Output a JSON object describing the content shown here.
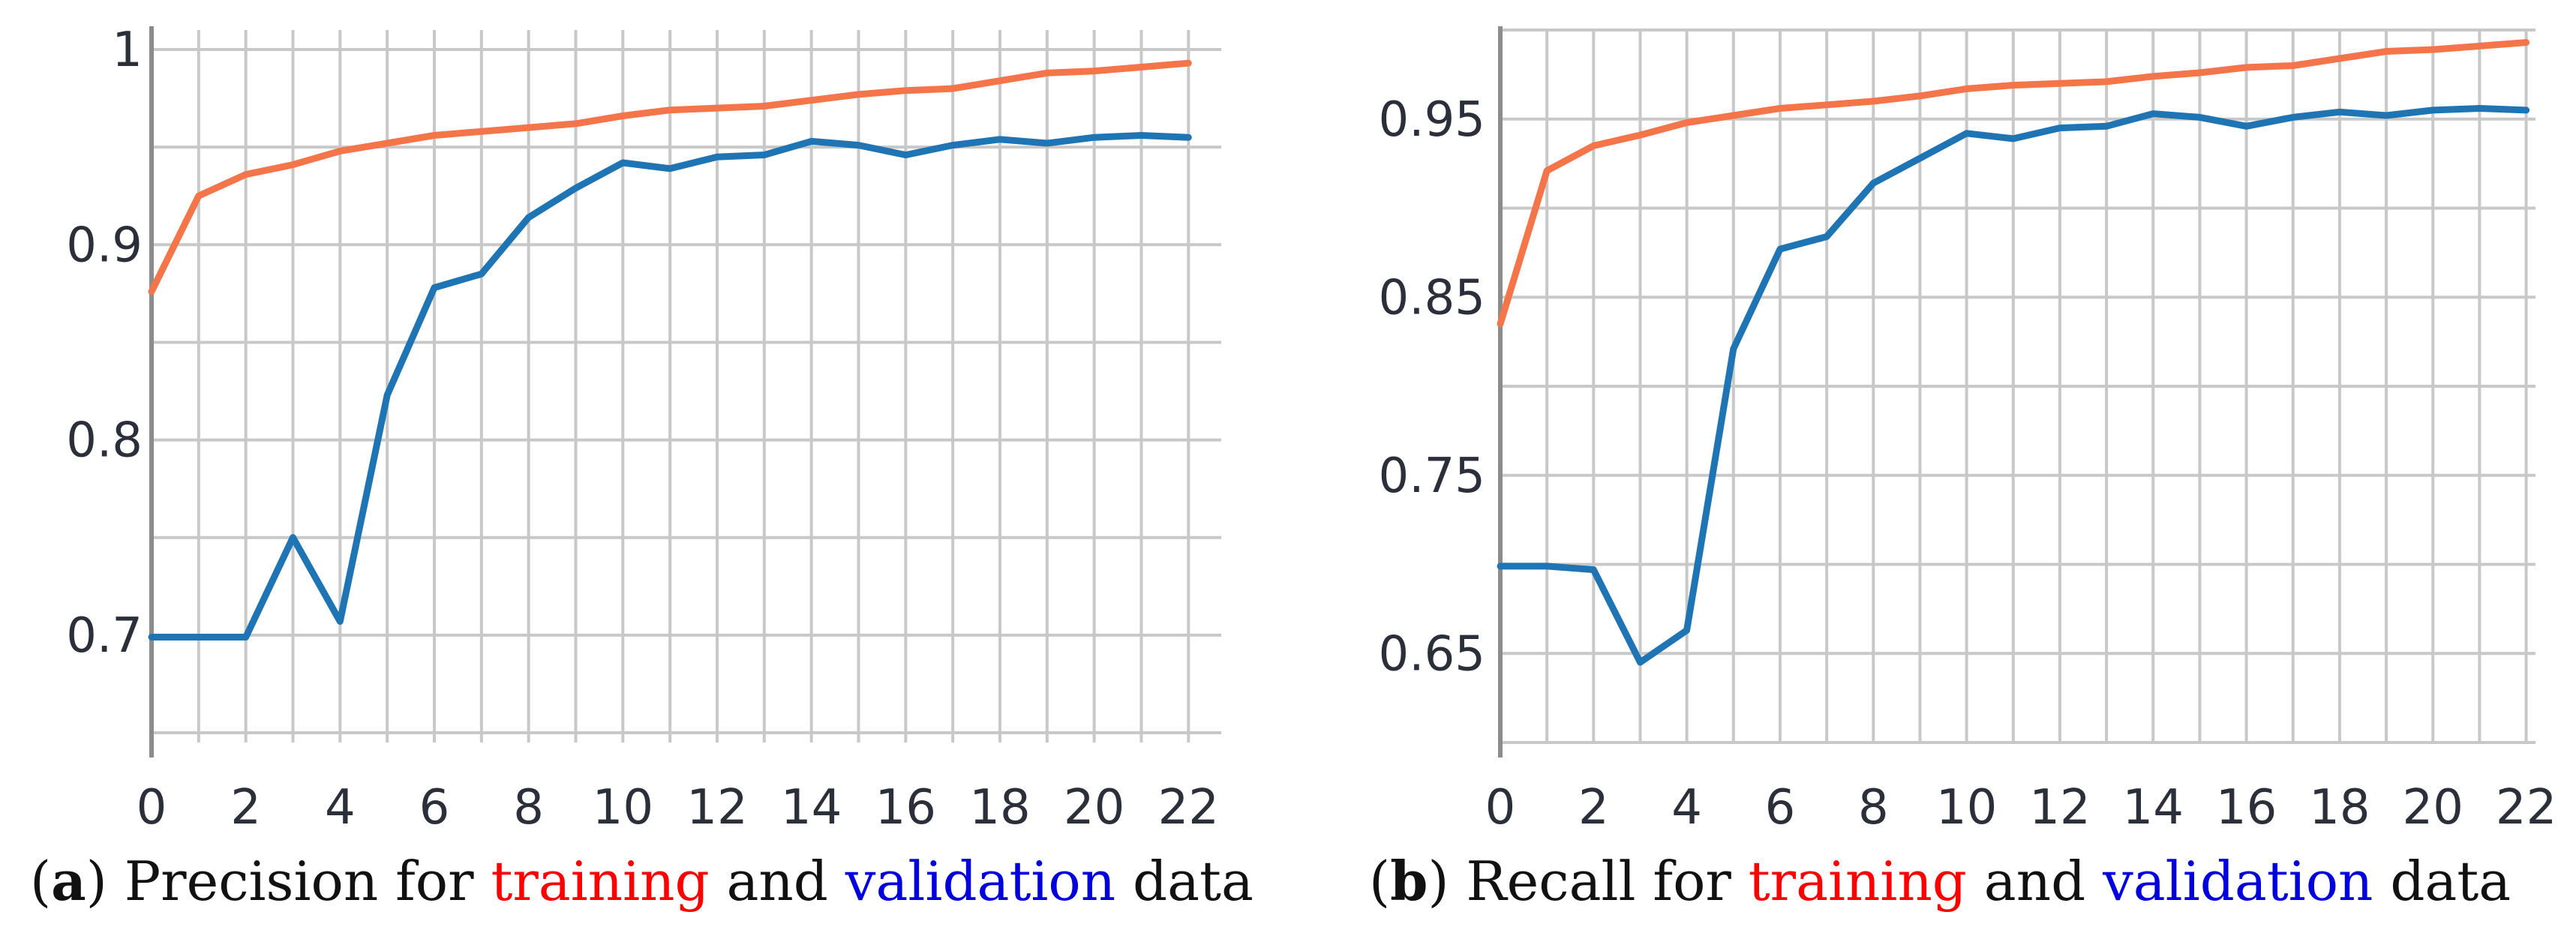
{
  "colors": {
    "training": "#f4754a",
    "validation": "#1f74b4",
    "training_word": "#ff0000",
    "validation_word": "#0000dd",
    "caption_text": "#111111"
  },
  "chart_data": [
    {
      "id": "a",
      "type": "line",
      "caption": {
        "open": "(",
        "label": "a",
        "close": ")",
        "pre": " Precision for ",
        "training_word": "training",
        "mid": " and ",
        "validation_word": "validation",
        "post": " data"
      },
      "x": [
        0,
        1,
        2,
        3,
        4,
        5,
        6,
        7,
        8,
        9,
        10,
        11,
        12,
        13,
        14,
        15,
        16,
        17,
        18,
        19,
        20,
        21,
        22
      ],
      "xticks": [
        0,
        2,
        4,
        6,
        8,
        10,
        12,
        14,
        16,
        18,
        20,
        22
      ],
      "xtick_labels": [
        "0",
        "2",
        "4",
        "6",
        "8",
        "10",
        "12",
        "14",
        "16",
        "18",
        "20",
        "22"
      ],
      "xlim": [
        0,
        22.6
      ],
      "ylim": [
        0.645,
        1.01
      ],
      "yticks": [
        0.7,
        0.8,
        0.9,
        1.0
      ],
      "ytick_labels": [
        "0.7",
        "0.8",
        "0.9",
        "1"
      ],
      "ygrid": [
        0.65,
        0.7,
        0.75,
        0.8,
        0.85,
        0.9,
        0.95,
        1.0
      ],
      "series": [
        {
          "name": "training",
          "values": [
            0.876,
            0.925,
            0.936,
            0.941,
            0.948,
            0.952,
            0.956,
            0.958,
            0.96,
            0.962,
            0.966,
            0.969,
            0.97,
            0.971,
            0.974,
            0.977,
            0.979,
            0.98,
            0.984,
            0.988,
            0.989,
            0.991,
            0.993
          ]
        },
        {
          "name": "validation",
          "values": [
            0.699,
            0.699,
            0.699,
            0.75,
            0.707,
            0.823,
            0.878,
            0.885,
            0.914,
            0.929,
            0.942,
            0.939,
            0.945,
            0.946,
            0.953,
            0.951,
            0.946,
            0.951,
            0.954,
            0.952,
            0.955,
            0.956,
            0.955
          ]
        }
      ]
    },
    {
      "id": "b",
      "type": "line",
      "caption": {
        "open": "(",
        "label": "b",
        "close": ")",
        "pre": " Recall for ",
        "training_word": "training",
        "mid": " and ",
        "validation_word": "validation",
        "post": " data"
      },
      "x": [
        0,
        1,
        2,
        3,
        4,
        5,
        6,
        7,
        8,
        9,
        10,
        11,
        12,
        13,
        14,
        15,
        16,
        17,
        18,
        19,
        20,
        21,
        22
      ],
      "xticks": [
        0,
        2,
        4,
        6,
        8,
        10,
        12,
        14,
        16,
        18,
        20,
        22
      ],
      "xtick_labels": [
        "0",
        "2",
        "4",
        "6",
        "8",
        "10",
        "12",
        "14",
        "16",
        "18",
        "20",
        "22"
      ],
      "xlim": [
        0,
        22.2
      ],
      "ylim": [
        0.6,
        1.0
      ],
      "yticks": [
        0.65,
        0.75,
        0.85,
        0.95
      ],
      "ytick_labels": [
        "0.65",
        "0.75",
        "0.85",
        "0.95"
      ],
      "ygrid": [
        0.6,
        0.65,
        0.7,
        0.75,
        0.8,
        0.85,
        0.9,
        0.95,
        1.0
      ],
      "series": [
        {
          "name": "training",
          "values": [
            0.835,
            0.921,
            0.935,
            0.941,
            0.948,
            0.952,
            0.956,
            0.958,
            0.96,
            0.963,
            0.967,
            0.969,
            0.97,
            0.971,
            0.974,
            0.976,
            0.979,
            0.98,
            0.984,
            0.988,
            0.989,
            0.991,
            0.993
          ]
        },
        {
          "name": "validation",
          "values": [
            0.699,
            0.699,
            0.697,
            0.645,
            0.663,
            0.821,
            0.877,
            0.884,
            0.914,
            0.928,
            0.942,
            0.939,
            0.945,
            0.946,
            0.953,
            0.951,
            0.946,
            0.951,
            0.954,
            0.952,
            0.955,
            0.956,
            0.955
          ]
        }
      ]
    }
  ]
}
